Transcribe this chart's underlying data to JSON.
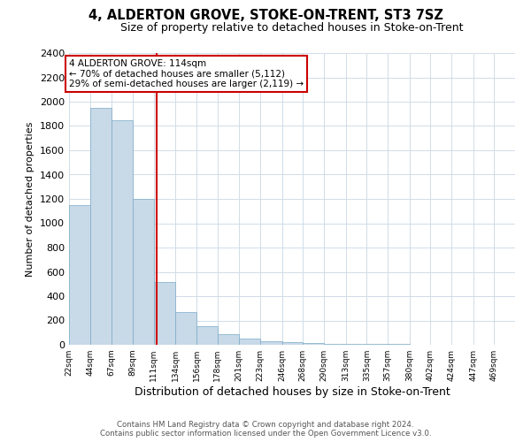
{
  "title": "4, ALDERTON GROVE, STOKE-ON-TRENT, ST3 7SZ",
  "subtitle": "Size of property relative to detached houses in Stoke-on-Trent",
  "xlabel": "Distribution of detached houses by size in Stoke-on-Trent",
  "ylabel": "Number of detached properties",
  "footer_line1": "Contains HM Land Registry data © Crown copyright and database right 2024.",
  "footer_line2": "Contains public sector information licensed under the Open Government Licence v3.0.",
  "bar_left_edges": [
    22,
    44,
    67,
    89,
    111,
    134,
    156,
    178,
    201,
    223,
    246,
    268,
    290,
    313,
    335,
    357,
    380,
    402,
    424,
    447
  ],
  "bar_widths": [
    22,
    23,
    22,
    22,
    23,
    22,
    22,
    23,
    22,
    23,
    22,
    22,
    23,
    22,
    22,
    23,
    22,
    22,
    23,
    22
  ],
  "bar_heights": [
    1150,
    1950,
    1850,
    1200,
    520,
    270,
    150,
    90,
    50,
    30,
    20,
    15,
    10,
    8,
    5,
    4,
    3,
    2,
    1,
    1
  ],
  "bar_color": "#c8d9e8",
  "bar_edge_color": "#7aaac8",
  "property_line_x": 114,
  "property_line_color": "#cc0000",
  "annotation_text": "4 ALDERTON GROVE: 114sqm\n← 70% of detached houses are smaller (5,112)\n29% of semi-detached houses are larger (2,119) →",
  "annotation_box_color": "#cc0000",
  "annotation_box_face": "#ffffff",
  "ylim": [
    0,
    2400
  ],
  "yticks": [
    0,
    200,
    400,
    600,
    800,
    1000,
    1200,
    1400,
    1600,
    1800,
    2000,
    2200,
    2400
  ],
  "xtick_labels": [
    "22sqm",
    "44sqm",
    "67sqm",
    "89sqm",
    "111sqm",
    "134sqm",
    "156sqm",
    "178sqm",
    "201sqm",
    "223sqm",
    "246sqm",
    "268sqm",
    "290sqm",
    "313sqm",
    "335sqm",
    "357sqm",
    "380sqm",
    "402sqm",
    "424sqm",
    "447sqm",
    "469sqm"
  ],
  "grid_color": "#d0dce8",
  "background_color": "#ffffff",
  "title_fontsize": 10.5,
  "subtitle_fontsize": 9
}
